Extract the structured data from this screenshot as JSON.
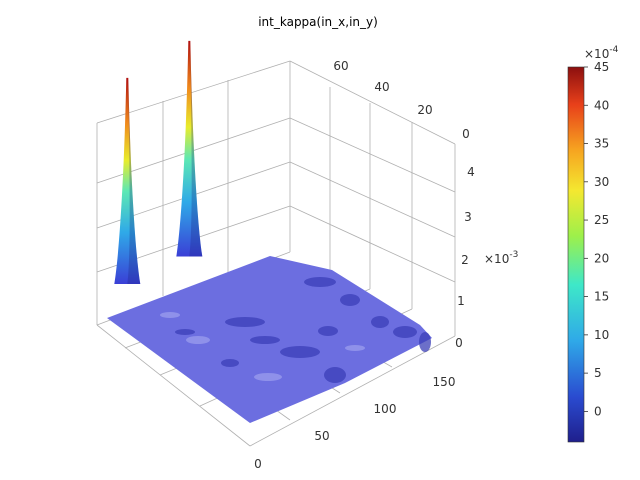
{
  "chart_data": {
    "type": "surface",
    "title": "int_kappa(in_x,in_y)",
    "x_axis": {
      "ticks": [
        "0",
        "50",
        "100",
        "150"
      ],
      "range": [
        0,
        160
      ]
    },
    "y_axis": {
      "ticks": [
        "0",
        "20",
        "40",
        "60"
      ],
      "range": [
        0,
        70
      ]
    },
    "z_axis": {
      "ticks": [
        "0",
        "1",
        "2",
        "3",
        "4"
      ],
      "multiplier": "×10",
      "exponent": "-3",
      "range": [
        -0.0003,
        0.0045
      ]
    },
    "colorbar": {
      "ticks": [
        "0",
        "5",
        "10",
        "15",
        "20",
        "25",
        "30",
        "35",
        "40",
        "45"
      ],
      "multiplier": "×10",
      "exponent": "-4",
      "range": [
        -4,
        45
      ],
      "colormap": [
        "#1f1f8c",
        "#2a4bd0",
        "#2fa9e8",
        "#3ee8c8",
        "#9ef04a",
        "#f4e830",
        "#f6a320",
        "#e8401a",
        "#8c0f0f"
      ]
    },
    "peaks": [
      {
        "x": 10,
        "y": 62,
        "value": 0.0043
      },
      {
        "x": 55,
        "y": 60,
        "value": 0.0045
      }
    ],
    "baseline": 0.0,
    "surface_color": "#6c6ee0",
    "grid": true
  }
}
